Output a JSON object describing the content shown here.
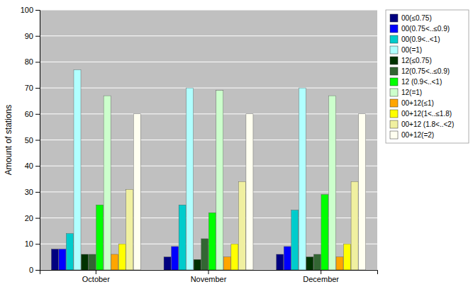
{
  "chart_data": {
    "type": "bar",
    "categories": [
      "October",
      "November",
      "December"
    ],
    "series": [
      {
        "name": "00(≤0.75)",
        "color": "#000080",
        "values": [
          8,
          5,
          6
        ]
      },
      {
        "name": "00(0.75<..≤0.9)",
        "color": "#0000FF",
        "values": [
          8,
          9,
          9
        ]
      },
      {
        "name": "00(0.9<..<1)",
        "color": "#00CCCC",
        "values": [
          14,
          25,
          23
        ]
      },
      {
        "name": "00(=1)",
        "color": "#B0FFFF",
        "values": [
          77,
          70,
          70
        ]
      },
      {
        "name": "12(≤0.75)",
        "color": "#003300",
        "values": [
          6,
          4,
          5
        ]
      },
      {
        "name": "12(0.75<..≤0.9)",
        "color": "#336633",
        "values": [
          6,
          12,
          6
        ]
      },
      {
        "name": "12 (0.9<..<1)",
        "color": "#00FF00",
        "values": [
          25,
          22,
          29
        ]
      },
      {
        "name": "12(=1)",
        "color": "#CCFFCC",
        "values": [
          67,
          69,
          67
        ]
      },
      {
        "name": "00+12(≤1)",
        "color": "#FFA500",
        "values": [
          6,
          5,
          5
        ]
      },
      {
        "name": "00+12(1<..≤1.8)",
        "color": "#FFFF00",
        "values": [
          10,
          10,
          10
        ]
      },
      {
        "name": "00+12 (1.8<..<2)",
        "color": "#F0F0A0",
        "values": [
          31,
          34,
          34
        ]
      },
      {
        "name": "00+12(=2)",
        "color": "#FFFFF0",
        "values": [
          60,
          60,
          60
        ]
      }
    ],
    "ylabel": "Amount of stations",
    "ylim": [
      0,
      100
    ],
    "yticks": [
      0,
      10,
      20,
      30,
      40,
      50,
      60,
      70,
      80,
      90,
      100
    ],
    "grid": true,
    "legend": "upper right"
  }
}
